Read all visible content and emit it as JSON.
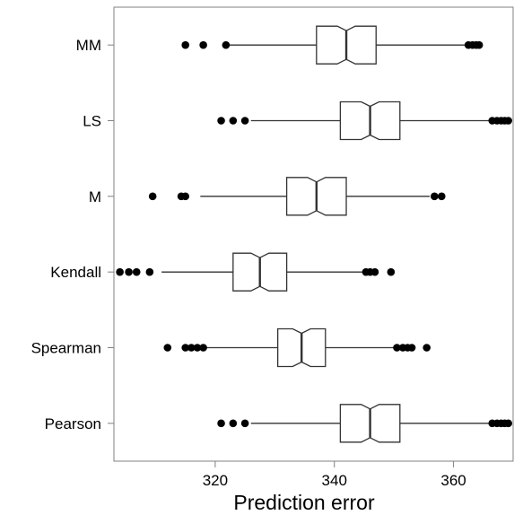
{
  "chart_data": {
    "type": "boxplot",
    "orientation": "horizontal",
    "notched": true,
    "xlabel": "Prediction error",
    "ylabel": "",
    "xlim": [
      303,
      370
    ],
    "xticks": [
      320,
      340,
      360
    ],
    "grid": false,
    "legend": "none",
    "colors": {
      "box_fill": "#ffffff",
      "stroke": "#333333",
      "outlier": "#000000",
      "panel_border": "#808080"
    },
    "categories": [
      "MM",
      "LS",
      "M",
      "Kendall",
      "Spearman",
      "Pearson"
    ],
    "series": [
      {
        "category": "MM",
        "whisker_low": 322,
        "q1": 337,
        "median": 342,
        "q3": 347,
        "whisker_high": 362,
        "notch_low": 340.5,
        "notch_high": 343.5,
        "outliers": [
          315,
          318,
          321.8,
          362.5,
          363.2,
          363.8,
          364.3
        ]
      },
      {
        "category": "LS",
        "whisker_low": 326,
        "q1": 341,
        "median": 346,
        "q3": 351,
        "whisker_high": 366,
        "notch_low": 344.5,
        "notch_high": 347.5,
        "outliers": [
          321,
          323,
          325,
          366.5,
          367.3,
          368,
          368.6,
          369.2
        ]
      },
      {
        "category": "M",
        "whisker_low": 317.5,
        "q1": 332,
        "median": 337,
        "q3": 342,
        "whisker_high": 356,
        "notch_low": 335.5,
        "notch_high": 338.5,
        "outliers": [
          309.5,
          314.3,
          315,
          356.8,
          358
        ]
      },
      {
        "category": "Kendall",
        "whisker_low": 311,
        "q1": 323,
        "median": 327.5,
        "q3": 332,
        "whisker_high": 345,
        "notch_low": 326,
        "notch_high": 329,
        "outliers": [
          304,
          305.5,
          306.8,
          309,
          345.3,
          346,
          346.8,
          349.5
        ]
      },
      {
        "category": "Spearman",
        "whisker_low": 318.5,
        "q1": 330.5,
        "median": 334.5,
        "q3": 338.5,
        "whisker_high": 350,
        "notch_low": 333,
        "notch_high": 336,
        "outliers": [
          312,
          315,
          316,
          317,
          318,
          350.5,
          351.5,
          352.3,
          353,
          355.5
        ]
      },
      {
        "category": "Pearson",
        "whisker_low": 326,
        "q1": 341,
        "median": 346,
        "q3": 351,
        "whisker_high": 366,
        "notch_low": 344.5,
        "notch_high": 347.5,
        "outliers": [
          321,
          323,
          325,
          366.5,
          367.3,
          368,
          368.6,
          369.2
        ]
      }
    ]
  }
}
